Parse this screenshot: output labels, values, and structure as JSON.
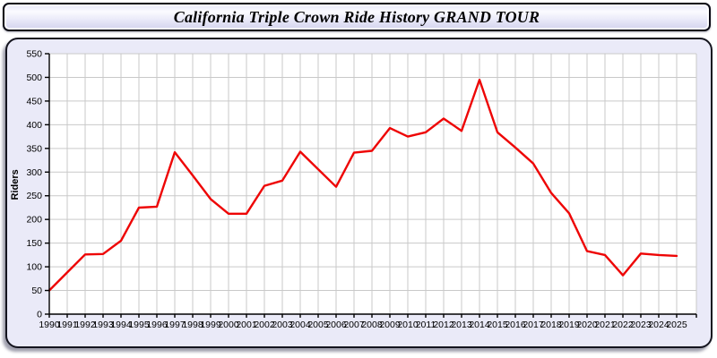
{
  "window": {
    "title": "California Triple Crown Ride History GRAND TOUR"
  },
  "chart_data": {
    "type": "line",
    "title": "California Triple Crown Ride History GRAND TOUR",
    "xlabel": "",
    "ylabel": "Riders",
    "x": [
      1990,
      1991,
      1992,
      1993,
      1994,
      1995,
      1996,
      1997,
      1998,
      1999,
      2000,
      2001,
      2002,
      2003,
      2004,
      2005,
      2006,
      2007,
      2008,
      2009,
      2010,
      2011,
      2012,
      2013,
      2014,
      2015,
      2016,
      2017,
      2018,
      2019,
      2020,
      2021,
      2022,
      2023,
      2024,
      2025
    ],
    "series": [
      {
        "name": "Riders",
        "values": [
          50,
          88,
          126,
          127,
          155,
          225,
          227,
          342,
          293,
          243,
          212,
          212,
          271,
          282,
          343,
          306,
          269,
          341,
          345,
          393,
          375,
          384,
          413,
          387,
          495,
          384,
          352,
          318,
          256,
          213,
          133,
          125,
          82,
          128,
          125,
          123
        ]
      }
    ],
    "ylim": [
      0,
      550
    ],
    "ytick_step": 50,
    "grid": true,
    "legend": false
  },
  "colors": {
    "line": "#ee0505",
    "grid": "#c9c9c9",
    "axis": "#000000",
    "plot_bg": "#ffffff",
    "panel_bg": "#eaeaf8"
  }
}
